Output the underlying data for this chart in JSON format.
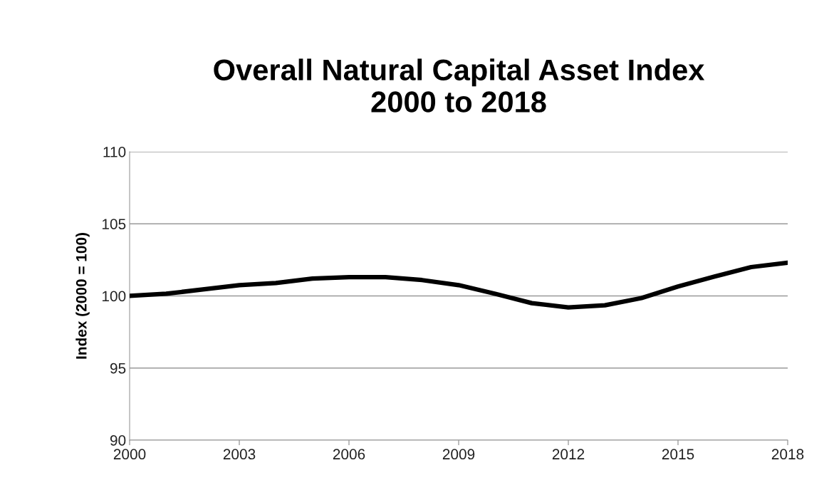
{
  "chart_data": {
    "type": "line",
    "title": "Overall Natural Capital Asset Index\n2000 to 2018",
    "ylabel": "Index (2000 = 100)",
    "x": [
      2000,
      2001,
      2002,
      2003,
      2004,
      2005,
      2006,
      2007,
      2008,
      2009,
      2010,
      2011,
      2012,
      2013,
      2014,
      2015,
      2016,
      2017,
      2018
    ],
    "series": [
      {
        "color": "#000000",
        "values": [
          100.0,
          100.15,
          100.45,
          100.75,
          100.9,
          101.2,
          101.3,
          101.3,
          101.1,
          100.75,
          100.15,
          99.5,
          99.2,
          99.35,
          99.85,
          100.65,
          101.35,
          102.0,
          102.3
        ]
      }
    ],
    "xlim": [
      2000,
      2018
    ],
    "xticks": [
      2000,
      2003,
      2006,
      2009,
      2012,
      2015,
      2018
    ],
    "ylim": [
      90,
      110
    ],
    "yticks": [
      90,
      95,
      100,
      105,
      110
    ],
    "grid": "y",
    "legend": false,
    "marker": "none",
    "line_style": "solid"
  }
}
